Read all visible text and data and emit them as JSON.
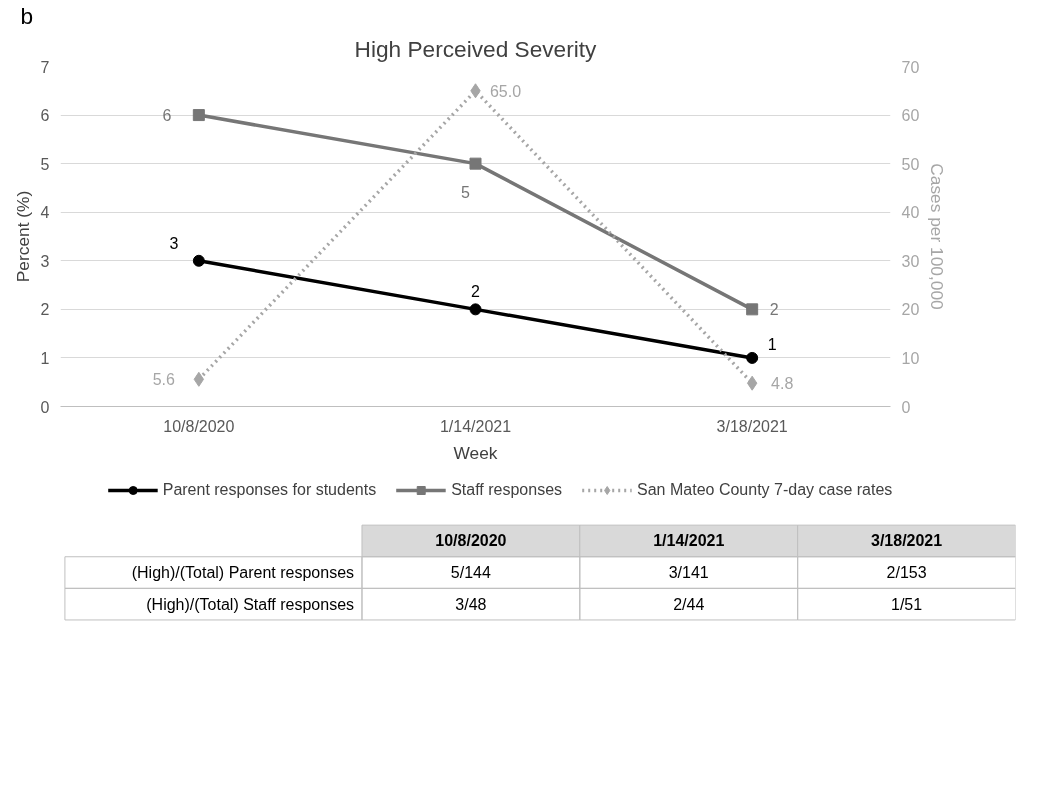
{
  "chart_data": [
    {
      "type": "line",
      "title": "High Perceived Severity",
      "xlabel": "Week",
      "ylabel": "Percent (%)",
      "y2label": "Cases per 100,000",
      "annotations": [
        "b"
      ],
      "categories": [
        "10/8/2020",
        "1/14/2021",
        "3/18/2021"
      ],
      "series": [
        {
          "name": "Parent responses for students",
          "color": "#000000",
          "marker": "circle",
          "line_style": "solid",
          "values": [
            3,
            2,
            1
          ]
        },
        {
          "name": "Staff responses",
          "color": "#767676",
          "marker": "square",
          "line_style": "solid",
          "values": [
            6,
            5,
            2
          ]
        },
        {
          "name": "San Mateo County 7-day case rates",
          "color": "#a6a6a6",
          "marker": "diamond",
          "line_style": "dotted",
          "axis": "y2",
          "values": [
            5.6,
            65.0,
            4.8
          ],
          "value_labels": [
            "5.6",
            "65.0",
            "4.8"
          ]
        }
      ],
      "data_labels": true,
      "ylim": [
        0,
        7
      ],
      "yticks": [
        0,
        1,
        2,
        3,
        4,
        5,
        6,
        7
      ],
      "y2lim": [
        0,
        70
      ],
      "y2ticks": [
        0,
        10,
        20,
        30,
        40,
        50,
        60,
        70
      ],
      "grid": "y",
      "legend": "bottom"
    },
    {
      "type": "other",
      "categories": [
        "10/8/2020",
        "1/14/2021",
        "3/18/2021"
      ],
      "y_categories": [
        "(High)/(Total) Parent responses",
        "(High)/(Total) Staff responses"
      ],
      "cell_labels": [
        [
          "5/144",
          "3/141",
          "2/153"
        ],
        [
          "3/48",
          "2/44",
          "1/51"
        ]
      ]
    }
  ]
}
